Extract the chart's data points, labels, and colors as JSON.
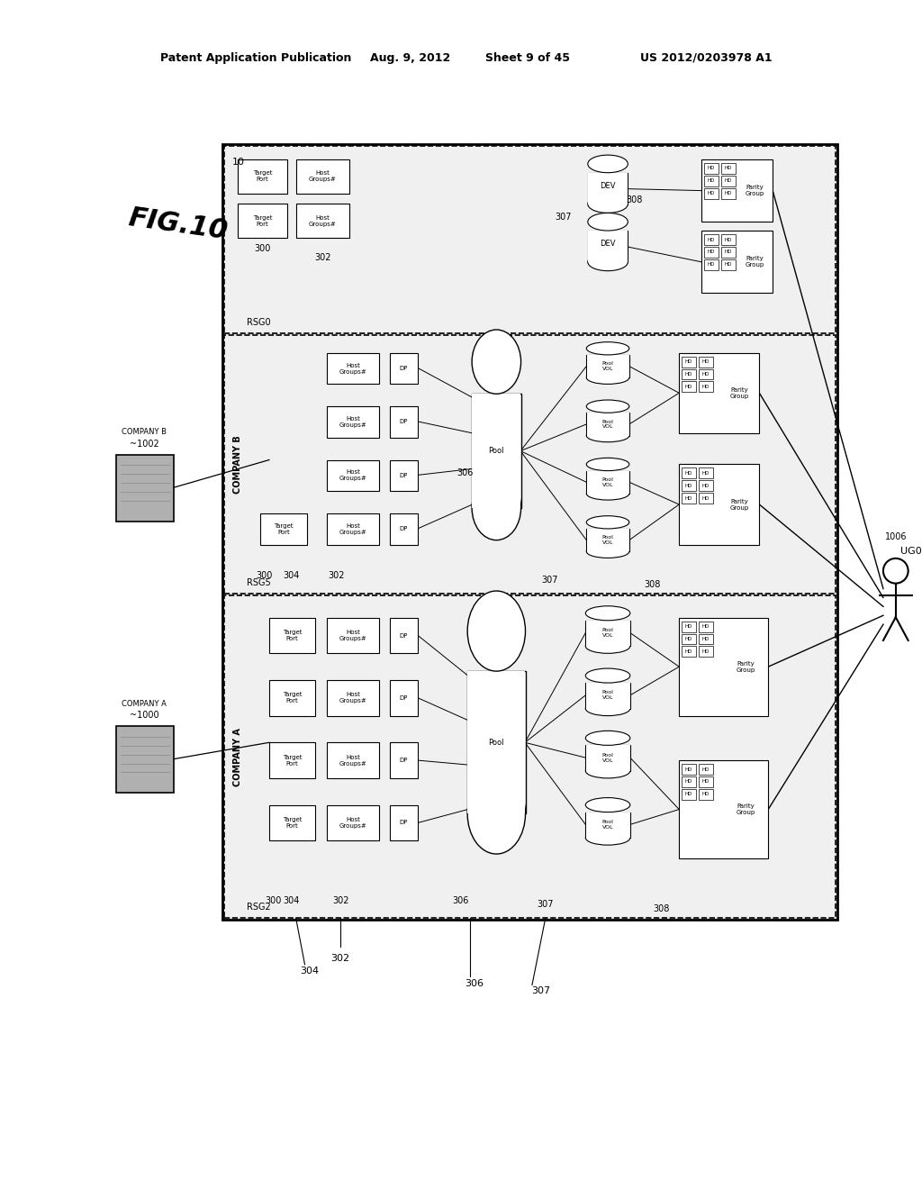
{
  "bg_color": "#ffffff",
  "fig_bg": "#e8e8e8",
  "header_text": "Patent Application Publication",
  "header_date": "Aug. 9, 2012",
  "header_sheet": "Sheet 9 of 45",
  "header_patent": "US 2012/0203978 A1",
  "fig_label": "FIG.10"
}
